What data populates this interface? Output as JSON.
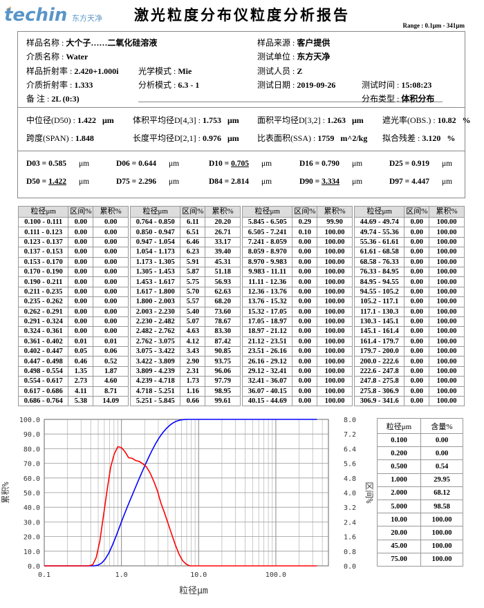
{
  "header": {
    "title": "激光粒度分布仪粒度分析报告",
    "range": "Range : 0.1μm - 341μm"
  },
  "info": {
    "sample_name": {
      "label": "样品名称 : ",
      "value": "大个子……二氧化硅溶液"
    },
    "sample_source": {
      "label": "样品来源 : ",
      "value": "客户提供"
    },
    "medium_name": {
      "label": "介质名称 : ",
      "value": "Water"
    },
    "test_unit": {
      "label": "测试单位 : ",
      "value": "东方天净"
    },
    "sample_ri": {
      "label": "样品折射率 : ",
      "value": "2.420+1.000i"
    },
    "optical_mode": {
      "label": "光学模式 : ",
      "value": "Mie"
    },
    "tester": {
      "label": "测试人员 : ",
      "value": "Z"
    },
    "medium_ri": {
      "label": "介质折射率 : ",
      "value": "1.333"
    },
    "analysis_mode": {
      "label": "分析模式 : ",
      "value": "6.3 - 1"
    },
    "test_date": {
      "label": "测试日期 : ",
      "value": "2019-09-26"
    },
    "test_time": {
      "label": "测试时间 : ",
      "value": "15:08:23"
    },
    "remark": {
      "label": "备   注 : ",
      "value": "2L  (0:3)"
    },
    "dist_type": {
      "label": "分布类型 : ",
      "value": "体积分布"
    }
  },
  "stats": [
    {
      "label": "中位径(D50) : ",
      "value": "1.422",
      "unit": "μm"
    },
    {
      "label": "体积平均径D[4,3] : ",
      "value": "1.753",
      "unit": "μm"
    },
    {
      "label": "面积平均径D[3,2] : ",
      "value": "1.263",
      "unit": "μm"
    },
    {
      "label": "遮光率(OBS.) : ",
      "value": "10.82",
      "unit": "%"
    },
    {
      "label": "跨度(SPAN) : ",
      "value": "1.848",
      "unit": ""
    },
    {
      "label": "长度平均径D[2,1] : ",
      "value": "0.976",
      "unit": "μm"
    },
    {
      "label": "比表面积(SSA) : ",
      "value": "1759",
      "unit": "m^2/kg"
    },
    {
      "label": "拟合残差 : ",
      "value": "3.120",
      "unit": "%"
    }
  ],
  "dvalues": [
    {
      "label": "D03 = ",
      "value": "0.585",
      "unit": "μm",
      "underline": false
    },
    {
      "label": "D06 = ",
      "value": "0.644",
      "unit": "μm",
      "underline": false
    },
    {
      "label": "D10 = ",
      "value": "0.705",
      "unit": "μm",
      "underline": true
    },
    {
      "label": "D16 = ",
      "value": "0.790",
      "unit": "μm",
      "underline": false
    },
    {
      "label": "D25 = ",
      "value": "0.919",
      "unit": "μm",
      "underline": false
    },
    {
      "label": "D50 = ",
      "value": "1.422",
      "unit": "μm",
      "underline": true
    },
    {
      "label": "D75 = ",
      "value": "2.296",
      "unit": "μm",
      "underline": false
    },
    {
      "label": "D84 = ",
      "value": "2.814",
      "unit": "μm",
      "underline": false
    },
    {
      "label": "D90 = ",
      "value": "3.334",
      "unit": "μm",
      "underline": true
    },
    {
      "label": "D97 = ",
      "value": "4.447",
      "unit": "μm",
      "underline": false
    }
  ],
  "dist_table": {
    "headers": [
      "粒径μm",
      "区间%",
      "累积%"
    ],
    "blocks": [
      [
        [
          "0.100 - 0.111",
          "0.00",
          "0.00"
        ],
        [
          "0.111 - 0.123",
          "0.00",
          "0.00"
        ],
        [
          "0.123 - 0.137",
          "0.00",
          "0.00"
        ],
        [
          "0.137 - 0.153",
          "0.00",
          "0.00"
        ],
        [
          "0.153 - 0.170",
          "0.00",
          "0.00"
        ],
        [
          "0.170 - 0.190",
          "0.00",
          "0.00"
        ],
        [
          "0.190 - 0.211",
          "0.00",
          "0.00"
        ],
        [
          "0.211 - 0.235",
          "0.00",
          "0.00"
        ],
        [
          "0.235 - 0.262",
          "0.00",
          "0.00"
        ],
        [
          "0.262 - 0.291",
          "0.00",
          "0.00"
        ],
        [
          "0.291 - 0.324",
          "0.00",
          "0.00"
        ],
        [
          "0.324 - 0.361",
          "0.00",
          "0.00"
        ],
        [
          "0.361 - 0.402",
          "0.01",
          "0.01"
        ],
        [
          "0.402 - 0.447",
          "0.05",
          "0.06"
        ],
        [
          "0.447 - 0.498",
          "0.46",
          "0.52"
        ],
        [
          "0.498 - 0.554",
          "1.35",
          "1.87"
        ],
        [
          "0.554 - 0.617",
          "2.73",
          "4.60"
        ],
        [
          "0.617 - 0.686",
          "4.11",
          "8.71"
        ],
        [
          "0.686 - 0.764",
          "5.38",
          "14.09"
        ]
      ],
      [
        [
          "0.764 - 0.850",
          "6.11",
          "20.20"
        ],
        [
          "0.850 - 0.947",
          "6.51",
          "26.71"
        ],
        [
          "0.947 - 1.054",
          "6.46",
          "33.17"
        ],
        [
          "1.054 - 1.173",
          "6.23",
          "39.40"
        ],
        [
          "1.173 - 1.305",
          "5.91",
          "45.31"
        ],
        [
          "1.305 - 1.453",
          "5.87",
          "51.18"
        ],
        [
          "1.453 - 1.617",
          "5.75",
          "56.93"
        ],
        [
          "1.617 - 1.800",
          "5.70",
          "62.63"
        ],
        [
          "1.800 - 2.003",
          "5.57",
          "68.20"
        ],
        [
          "2.003 - 2.230",
          "5.40",
          "73.60"
        ],
        [
          "2.230 - 2.482",
          "5.07",
          "78.67"
        ],
        [
          "2.482 - 2.762",
          "4.63",
          "83.30"
        ],
        [
          "2.762 - 3.075",
          "4.12",
          "87.42"
        ],
        [
          "3.075 - 3.422",
          "3.43",
          "90.85"
        ],
        [
          "3.422 - 3.809",
          "2.90",
          "93.75"
        ],
        [
          "3.809 - 4.239",
          "2.31",
          "96.06"
        ],
        [
          "4.239 - 4.718",
          "1.73",
          "97.79"
        ],
        [
          "4.718 - 5.251",
          "1.16",
          "98.95"
        ],
        [
          "5.251 - 5.845",
          "0.66",
          "99.61"
        ]
      ],
      [
        [
          "5.845 - 6.505",
          "0.29",
          "99.90"
        ],
        [
          "6.505 - 7.241",
          "0.10",
          "100.00"
        ],
        [
          "7.241 - 8.059",
          "0.00",
          "100.00"
        ],
        [
          "8.059 - 8.970",
          "0.00",
          "100.00"
        ],
        [
          "8.970 - 9.983",
          "0.00",
          "100.00"
        ],
        [
          "9.983 - 11.11",
          "0.00",
          "100.00"
        ],
        [
          "11.11 - 12.36",
          "0.00",
          "100.00"
        ],
        [
          "12.36 - 13.76",
          "0.00",
          "100.00"
        ],
        [
          "13.76 - 15.32",
          "0.00",
          "100.00"
        ],
        [
          "15.32 - 17.05",
          "0.00",
          "100.00"
        ],
        [
          "17.05 - 18.97",
          "0.00",
          "100.00"
        ],
        [
          "18.97 - 21.12",
          "0.00",
          "100.00"
        ],
        [
          "21.12 - 23.51",
          "0.00",
          "100.00"
        ],
        [
          "23.51 - 26.16",
          "0.00",
          "100.00"
        ],
        [
          "26.16 - 29.12",
          "0.00",
          "100.00"
        ],
        [
          "29.12 - 32.41",
          "0.00",
          "100.00"
        ],
        [
          "32.41 - 36.07",
          "0.00",
          "100.00"
        ],
        [
          "36.07 - 40.15",
          "0.00",
          "100.00"
        ],
        [
          "40.15 - 44.69",
          "0.00",
          "100.00"
        ]
      ],
      [
        [
          "44.69 - 49.74",
          "0.00",
          "100.00"
        ],
        [
          "49.74 - 55.36",
          "0.00",
          "100.00"
        ],
        [
          "55.36 - 61.61",
          "0.00",
          "100.00"
        ],
        [
          "61.61 - 68.58",
          "0.00",
          "100.00"
        ],
        [
          "68.58 - 76.33",
          "0.00",
          "100.00"
        ],
        [
          "76.33 - 84.95",
          "0.00",
          "100.00"
        ],
        [
          "84.95 - 94.55",
          "0.00",
          "100.00"
        ],
        [
          "94.55 - 105.2",
          "0.00",
          "100.00"
        ],
        [
          "105.2 - 117.1",
          "0.00",
          "100.00"
        ],
        [
          "117.1 - 130.3",
          "0.00",
          "100.00"
        ],
        [
          "130.3 - 145.1",
          "0.00",
          "100.00"
        ],
        [
          "145.1 - 161.4",
          "0.00",
          "100.00"
        ],
        [
          "161.4 - 179.7",
          "0.00",
          "100.00"
        ],
        [
          "179.7 - 200.0",
          "0.00",
          "100.00"
        ],
        [
          "200.0 - 222.6",
          "0.00",
          "100.00"
        ],
        [
          "222.6 - 247.8",
          "0.00",
          "100.00"
        ],
        [
          "247.8 - 275.8",
          "0.00",
          "100.00"
        ],
        [
          "275.8 - 306.9",
          "0.00",
          "100.00"
        ],
        [
          "306.9 - 341.6",
          "0.00",
          "100.00"
        ]
      ]
    ]
  },
  "size_table": {
    "headers": [
      "粒径μm",
      "含量%"
    ],
    "rows": [
      [
        "0.100",
        "0.00"
      ],
      [
        "0.200",
        "0.00"
      ],
      [
        "0.500",
        "0.54"
      ],
      [
        "1.000",
        "29.95"
      ],
      [
        "2.000",
        "68.12"
      ],
      [
        "5.000",
        "98.58"
      ],
      [
        "10.00",
        "100.00"
      ],
      [
        "20.00",
        "100.00"
      ],
      [
        "45.00",
        "100.00"
      ],
      [
        "75.00",
        "100.00"
      ]
    ]
  },
  "watermark": {
    "text": "techin",
    "subtext": "东方天净",
    "color": "#1a6db5",
    "accent": "#f08a24"
  },
  "chart_data": {
    "type": "line",
    "xlabel": "粒径μm",
    "ylabel": "累积%",
    "ylabel_right": "区间%",
    "xscale": "log",
    "xlim": [
      0.1,
      480
    ],
    "ylim": [
      0,
      100
    ],
    "ylim_right": [
      0,
      8
    ],
    "xticks": [
      "0.1",
      "1.0",
      "10.0",
      "100.0"
    ],
    "yticks": [
      "0.0",
      "10.0",
      "20.0",
      "30.0",
      "40.0",
      "50.0",
      "60.0",
      "70.0",
      "80.0",
      "90.0",
      "100.0"
    ],
    "yticks_right": [
      "0.0",
      "0.8",
      "1.6",
      "2.4",
      "3.2",
      "4.0",
      "4.8",
      "5.6",
      "6.4",
      "7.2",
      "8.0"
    ],
    "grid": true,
    "bin_edges": [
      0.1,
      0.111,
      0.123,
      0.137,
      0.153,
      0.17,
      0.19,
      0.211,
      0.235,
      0.262,
      0.291,
      0.324,
      0.361,
      0.402,
      0.447,
      0.498,
      0.554,
      0.617,
      0.686,
      0.764,
      0.85,
      0.947,
      1.054,
      1.173,
      1.305,
      1.453,
      1.617,
      1.8,
      2.003,
      2.23,
      2.482,
      2.762,
      3.075,
      3.422,
      3.809,
      4.239,
      4.718,
      5.251,
      5.845,
      6.505,
      7.241,
      8.059,
      8.97,
      9.983,
      11.11,
      12.36,
      13.76,
      15.32,
      17.05,
      18.97,
      21.12,
      23.51,
      26.16,
      29.12,
      32.41,
      36.07,
      40.15,
      44.69,
      49.74,
      55.36,
      61.61,
      68.58,
      76.33,
      84.95,
      94.55,
      105.2,
      117.1,
      130.3,
      145.1,
      161.4,
      179.7,
      200.0,
      222.6,
      247.8,
      275.8,
      306.9,
      341.6
    ],
    "series": [
      {
        "role": "cumulative",
        "axis": "left",
        "color": "#0000ff",
        "values": [
          0,
          0,
          0,
          0,
          0,
          0,
          0,
          0,
          0,
          0,
          0,
          0,
          0.01,
          0.06,
          0.52,
          1.87,
          4.6,
          8.71,
          14.09,
          20.2,
          26.71,
          33.17,
          39.4,
          45.31,
          51.18,
          56.93,
          62.63,
          68.2,
          73.6,
          78.67,
          83.3,
          87.42,
          90.85,
          93.75,
          96.06,
          97.79,
          98.95,
          99.61,
          99.9,
          100,
          100,
          100,
          100,
          100,
          100,
          100,
          100,
          100,
          100,
          100,
          100,
          100,
          100,
          100,
          100,
          100,
          100,
          100,
          100,
          100,
          100,
          100,
          100,
          100,
          100,
          100,
          100,
          100,
          100,
          100,
          100,
          100,
          100,
          100,
          100,
          100
        ]
      },
      {
        "role": "differential",
        "axis": "right",
        "color": "#ff0000",
        "values": [
          0,
          0,
          0,
          0,
          0,
          0,
          0,
          0,
          0,
          0,
          0,
          0,
          0.01,
          0.05,
          0.46,
          1.35,
          2.73,
          4.11,
          5.38,
          6.11,
          6.51,
          6.46,
          6.23,
          5.91,
          5.87,
          5.75,
          5.7,
          5.57,
          5.4,
          5.07,
          4.63,
          4.12,
          3.43,
          2.9,
          2.31,
          1.73,
          1.16,
          0.66,
          0.29,
          0.1,
          0,
          0,
          0,
          0,
          0,
          0,
          0,
          0,
          0,
          0,
          0,
          0,
          0,
          0,
          0,
          0,
          0,
          0,
          0,
          0,
          0,
          0,
          0,
          0,
          0,
          0,
          0,
          0,
          0,
          0,
          0,
          0,
          0,
          0,
          0,
          0
        ]
      }
    ]
  }
}
